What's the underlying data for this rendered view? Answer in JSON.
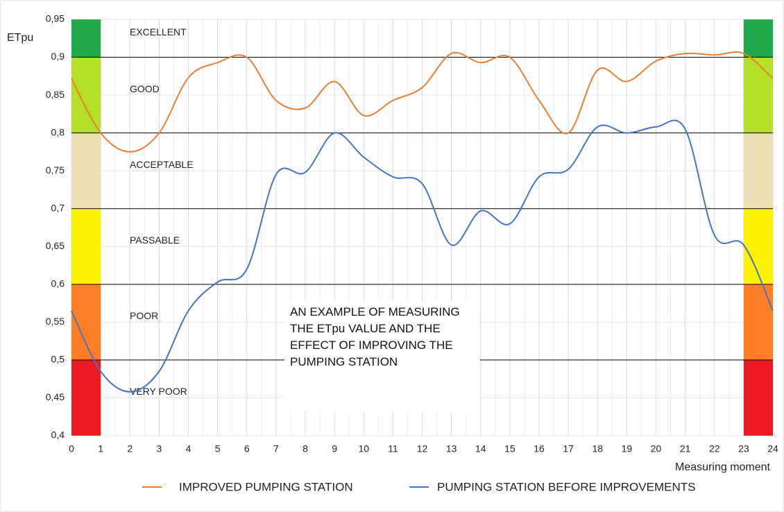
{
  "chart_data": {
    "type": "line",
    "y_label": "ETpu",
    "x_label": "Measuring moment",
    "annotation": "AN EXAMPLE OF MEASURING THE ETpu VALUE AND THE EFFECT OF IMPROVING THE PUMPING STATION",
    "x": [
      0,
      1,
      2,
      3,
      4,
      5,
      6,
      7,
      8,
      9,
      10,
      11,
      12,
      13,
      14,
      15,
      16,
      17,
      18,
      19,
      20,
      21,
      22,
      23,
      24
    ],
    "xlim": [
      0,
      24
    ],
    "xticks": [
      0,
      1,
      2,
      3,
      4,
      5,
      6,
      7,
      8,
      9,
      10,
      11,
      12,
      13,
      14,
      15,
      16,
      17,
      18,
      19,
      20,
      21,
      22,
      23,
      24
    ],
    "ylim": [
      0.4,
      0.95
    ],
    "yticks": [
      {
        "value": 0.4,
        "label": "0,4"
      },
      {
        "value": 0.45,
        "label": "0,45"
      },
      {
        "value": 0.5,
        "label": "0,5"
      },
      {
        "value": 0.55,
        "label": "0,55"
      },
      {
        "value": 0.6,
        "label": "0,6"
      },
      {
        "value": 0.65,
        "label": "0,65"
      },
      {
        "value": 0.7,
        "label": "0,7"
      },
      {
        "value": 0.75,
        "label": "0,75"
      },
      {
        "value": 0.8,
        "label": "0,8"
      },
      {
        "value": 0.85,
        "label": "0,85"
      },
      {
        "value": 0.9,
        "label": "0,9"
      },
      {
        "value": 0.95,
        "label": "0,95"
      }
    ],
    "grid": true,
    "band_x": [
      [
        0,
        1
      ],
      [
        23,
        24
      ]
    ],
    "bands": [
      {
        "label": "EXCELLENT",
        "from": 0.9,
        "to": 0.95,
        "color": "#22a84b"
      },
      {
        "label": "GOOD",
        "from": 0.8,
        "to": 0.9,
        "color": "#b5e02a"
      },
      {
        "label": "ACCEPTABLE",
        "from": 0.7,
        "to": 0.8,
        "color": "#ede0b5"
      },
      {
        "label": "PASSABLE",
        "from": 0.6,
        "to": 0.7,
        "color": "#fff200"
      },
      {
        "label": "POOR",
        "from": 0.5,
        "to": 0.6,
        "color": "#ff7f27"
      },
      {
        "label": "VERY POOR",
        "from": 0.4,
        "to": 0.5,
        "color": "#ed1c24"
      }
    ],
    "series": [
      {
        "name": "IMPROVED PUMPING STATION",
        "color": "#ed7d31",
        "values": [
          0.872,
          0.8,
          0.775,
          0.8,
          0.873,
          0.893,
          0.9,
          0.843,
          0.833,
          0.868,
          0.823,
          0.843,
          0.86,
          0.905,
          0.893,
          0.9,
          0.843,
          0.8,
          0.883,
          0.868,
          0.895,
          0.905,
          0.903,
          0.905,
          0.872
        ]
      },
      {
        "name": "PUMPING STATION BEFORE IMPROVEMENTS",
        "color": "#4472c4",
        "values": [
          0.565,
          0.485,
          0.458,
          0.485,
          0.565,
          0.603,
          0.62,
          0.745,
          0.748,
          0.8,
          0.768,
          0.742,
          0.733,
          0.652,
          0.697,
          0.68,
          0.742,
          0.752,
          0.808,
          0.8,
          0.808,
          0.805,
          0.665,
          0.652,
          0.565
        ]
      }
    ]
  }
}
